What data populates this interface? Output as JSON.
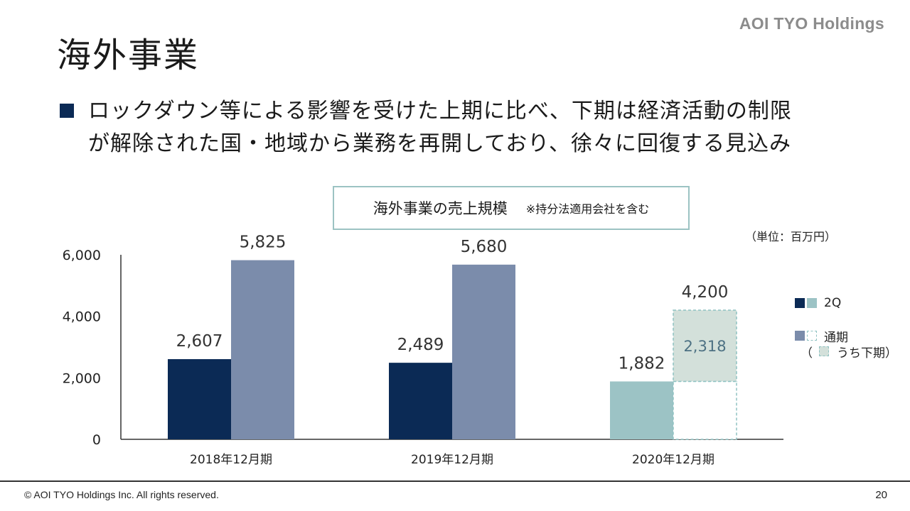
{
  "header": {
    "logo_text": "AOI TYO Holdings",
    "title": "海外事業"
  },
  "bullet": {
    "line1": "ロックダウン等による影響を受けた上期に比べ、下期は経済活動の制限",
    "line2": "が解除された国・地域から業務を再開しており、徐々に回復する見込み"
  },
  "chart_box": {
    "title": "海外事業の売上規模",
    "note": "※持分法適用会社を含む"
  },
  "unit": "（単位：百万円）",
  "legend": {
    "q2": "2Q",
    "full_year": "通期",
    "second_half": "（　　うち下期）"
  },
  "colors": {
    "q2_past": "#0b2a55",
    "full_past": "#7b8cab",
    "q2_2020": "#9cc3c5",
    "h2_2020": "#d3e0da",
    "dashed": "#8fc2c2"
  },
  "chart_data": {
    "type": "bar",
    "categories": [
      "2018年12月期",
      "2019年12月期",
      "2020年12月期"
    ],
    "series": [
      {
        "name": "2Q",
        "values": [
          2607,
          2489,
          1882
        ]
      },
      {
        "name": "通期",
        "values": [
          5825,
          5680,
          4200
        ]
      },
      {
        "name": "うち下期",
        "values": [
          null,
          null,
          2318
        ]
      }
    ],
    "value_labels": {
      "q2": [
        "2,607",
        "2,489",
        "1,882"
      ],
      "full": [
        "5,825",
        "5,680",
        "4,200"
      ],
      "h2": [
        "",
        "",
        "2,318"
      ]
    },
    "yticks": [
      0,
      2000,
      4000,
      6000
    ],
    "ytick_labels": [
      "0",
      "2,000",
      "4,000",
      "6,000"
    ],
    "ylim": [
      0,
      6000
    ],
    "xlabel": "",
    "ylabel": "",
    "title": "海外事業の売上規模",
    "grid": false,
    "legend_position": "right"
  },
  "footer": {
    "copyright": "© AOI TYO Holdings Inc. All rights reserved.",
    "page_number": "20"
  }
}
